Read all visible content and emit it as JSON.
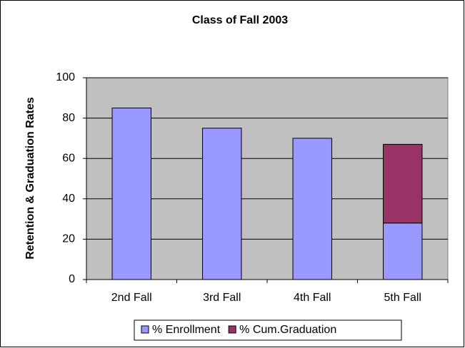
{
  "chart_data": {
    "type": "stacked_bar",
    "title": "Class of Fall 2003",
    "y_label": "Retention & Graduation Rates",
    "categories": [
      "2nd Fall",
      "3rd Fall",
      "4th Fall",
      "5th Fall"
    ],
    "series": [
      {
        "name": "% Enrollment",
        "color": "#9999ff",
        "values": [
          85,
          75,
          70,
          28
        ]
      },
      {
        "name": "% Cum.Graduation",
        "color": "#993366",
        "values": [
          null,
          null,
          null,
          39
        ]
      }
    ],
    "ylim": [
      0,
      100
    ],
    "yticks": [
      0,
      20,
      40,
      60,
      80,
      100
    ],
    "grid": true,
    "legend": "bottom"
  }
}
